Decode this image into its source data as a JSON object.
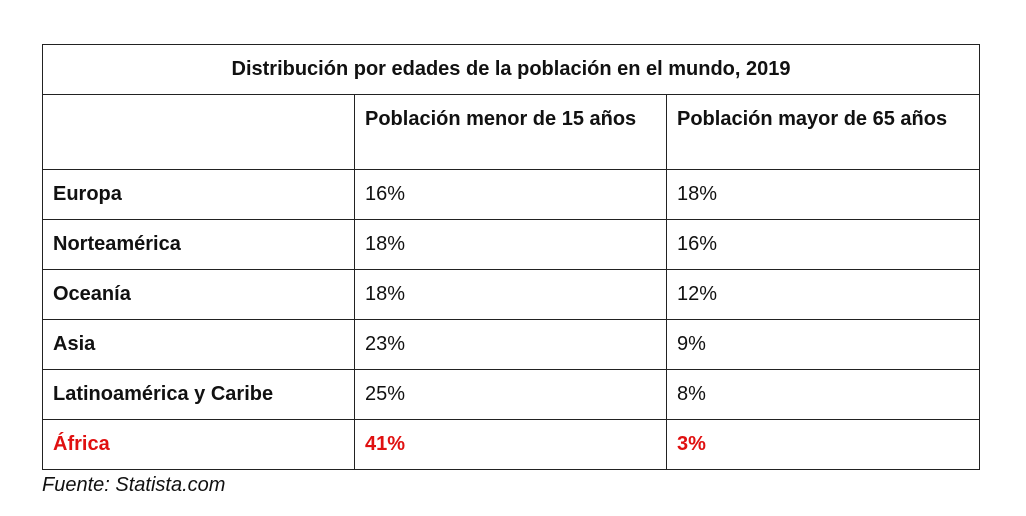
{
  "table": {
    "title": "Distribución por edades de la población en el mundo, 2019",
    "headers": [
      "",
      "Población menor de 15 años",
      "Población mayor de 65 años"
    ],
    "rows": [
      {
        "region": "Europa",
        "under15": "16%",
        "over65": "18%"
      },
      {
        "region": "Norteamérica",
        "under15": "18%",
        "over65": "16%"
      },
      {
        "region": "Oceanía",
        "under15": "18%",
        "over65": "12%"
      },
      {
        "region": "Asia",
        "under15": "23%",
        "over65": "9%"
      },
      {
        "region": "Latinoamérica y Caribe",
        "under15": "25%",
        "over65": "8%"
      },
      {
        "region": "África",
        "under15": "41%",
        "over65": "3%"
      }
    ],
    "highlight_color": "#e01010"
  },
  "source": "Fuente: Statista.com"
}
